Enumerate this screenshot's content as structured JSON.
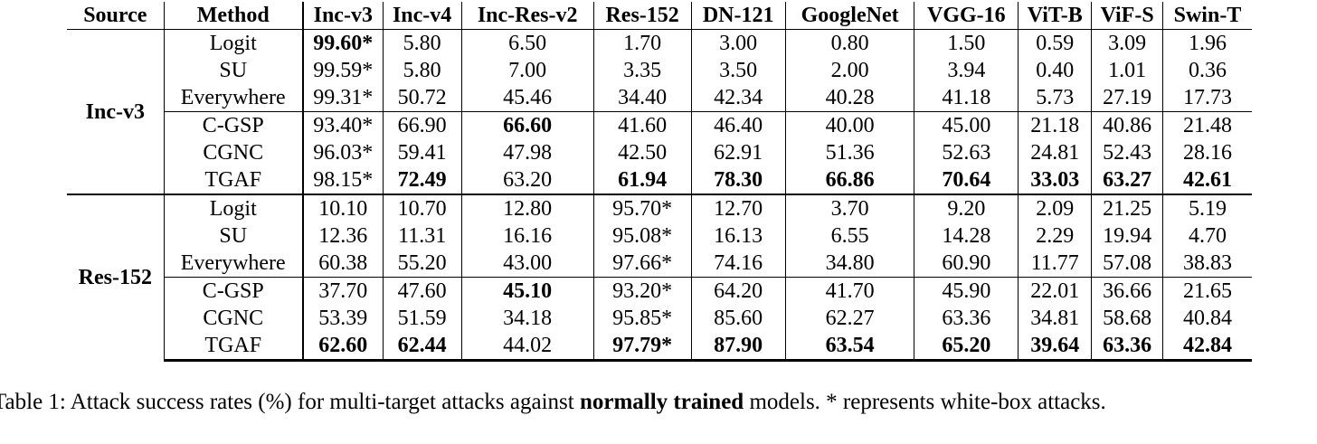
{
  "headers": [
    "Source",
    "Method",
    "Inc-v3",
    "Inc-v4",
    "Inc-Res-v2",
    "Res-152",
    "DN-121",
    "GoogleNet",
    "VGG-16",
    "ViT-B",
    "ViF-S",
    "Swin-T"
  ],
  "groups": [
    {
      "source": "Inc-v3",
      "rows": [
        {
          "method": "Logit",
          "cells": [
            {
              "v": "99.60*",
              "b": true
            },
            {
              "v": "5.80"
            },
            {
              "v": "6.50"
            },
            {
              "v": "1.70"
            },
            {
              "v": "3.00"
            },
            {
              "v": "0.80"
            },
            {
              "v": "1.50"
            },
            {
              "v": "0.59"
            },
            {
              "v": "3.09"
            },
            {
              "v": "1.96"
            }
          ]
        },
        {
          "method": "SU",
          "cells": [
            {
              "v": "99.59*"
            },
            {
              "v": "5.80"
            },
            {
              "v": "7.00"
            },
            {
              "v": "3.35"
            },
            {
              "v": "3.50"
            },
            {
              "v": "2.00"
            },
            {
              "v": "3.94"
            },
            {
              "v": "0.40"
            },
            {
              "v": "1.01"
            },
            {
              "v": "0.36"
            }
          ]
        },
        {
          "method": "Everywhere",
          "cells": [
            {
              "v": "99.31*"
            },
            {
              "v": "50.72"
            },
            {
              "v": "45.46"
            },
            {
              "v": "34.40"
            },
            {
              "v": "42.34"
            },
            {
              "v": "40.28"
            },
            {
              "v": "41.18"
            },
            {
              "v": "5.73"
            },
            {
              "v": "27.19"
            },
            {
              "v": "17.73"
            }
          ]
        },
        {
          "method": "C-GSP",
          "cells": [
            {
              "v": "93.40*"
            },
            {
              "v": "66.90"
            },
            {
              "v": "66.60",
              "b": true
            },
            {
              "v": "41.60"
            },
            {
              "v": "46.40"
            },
            {
              "v": "40.00"
            },
            {
              "v": "45.00"
            },
            {
              "v": "21.18"
            },
            {
              "v": "40.86"
            },
            {
              "v": "21.48"
            }
          ]
        },
        {
          "method": "CGNC",
          "cells": [
            {
              "v": "96.03*"
            },
            {
              "v": "59.41"
            },
            {
              "v": "47.98"
            },
            {
              "v": "42.50"
            },
            {
              "v": "62.91"
            },
            {
              "v": "51.36"
            },
            {
              "v": "52.63"
            },
            {
              "v": "24.81"
            },
            {
              "v": "52.43"
            },
            {
              "v": "28.16"
            }
          ]
        },
        {
          "method": "TGAF",
          "cells": [
            {
              "v": "98.15*"
            },
            {
              "v": "72.49",
              "b": true
            },
            {
              "v": "63.20"
            },
            {
              "v": "61.94",
              "b": true
            },
            {
              "v": "78.30",
              "b": true
            },
            {
              "v": "66.86",
              "b": true
            },
            {
              "v": "70.64",
              "b": true
            },
            {
              "v": "33.03",
              "b": true
            },
            {
              "v": "63.27",
              "b": true
            },
            {
              "v": "42.61",
              "b": true
            }
          ]
        }
      ]
    },
    {
      "source": "Res-152",
      "rows": [
        {
          "method": "Logit",
          "cells": [
            {
              "v": "10.10"
            },
            {
              "v": "10.70"
            },
            {
              "v": "12.80"
            },
            {
              "v": "95.70*"
            },
            {
              "v": "12.70"
            },
            {
              "v": "3.70"
            },
            {
              "v": "9.20"
            },
            {
              "v": "2.09"
            },
            {
              "v": "21.25"
            },
            {
              "v": "5.19"
            }
          ]
        },
        {
          "method": "SU",
          "cells": [
            {
              "v": "12.36"
            },
            {
              "v": "11.31"
            },
            {
              "v": "16.16"
            },
            {
              "v": "95.08*"
            },
            {
              "v": "16.13"
            },
            {
              "v": "6.55"
            },
            {
              "v": "14.28"
            },
            {
              "v": "2.29"
            },
            {
              "v": "19.94"
            },
            {
              "v": "4.70"
            }
          ]
        },
        {
          "method": "Everywhere",
          "cells": [
            {
              "v": "60.38"
            },
            {
              "v": "55.20"
            },
            {
              "v": "43.00"
            },
            {
              "v": "97.66*"
            },
            {
              "v": "74.16"
            },
            {
              "v": "34.80"
            },
            {
              "v": "60.90"
            },
            {
              "v": "11.77"
            },
            {
              "v": "57.08"
            },
            {
              "v": "38.83"
            }
          ]
        },
        {
          "method": "C-GSP",
          "cells": [
            {
              "v": "37.70"
            },
            {
              "v": "47.60"
            },
            {
              "v": "45.10",
              "b": true
            },
            {
              "v": "93.20*"
            },
            {
              "v": "64.20"
            },
            {
              "v": "41.70"
            },
            {
              "v": "45.90"
            },
            {
              "v": "22.01"
            },
            {
              "v": "36.66"
            },
            {
              "v": "21.65"
            }
          ]
        },
        {
          "method": "CGNC",
          "cells": [
            {
              "v": "53.39"
            },
            {
              "v": "51.59"
            },
            {
              "v": "34.18"
            },
            {
              "v": "95.85*"
            },
            {
              "v": "85.60"
            },
            {
              "v": "62.27"
            },
            {
              "v": "63.36"
            },
            {
              "v": "34.81"
            },
            {
              "v": "58.68"
            },
            {
              "v": "40.84"
            }
          ]
        },
        {
          "method": "TGAF",
          "cells": [
            {
              "v": "62.60",
              "b": true
            },
            {
              "v": "62.44",
              "b": true
            },
            {
              "v": "44.02"
            },
            {
              "v": "97.79*",
              "b": true
            },
            {
              "v": "87.90",
              "b": true
            },
            {
              "v": "63.54",
              "b": true
            },
            {
              "v": "65.20",
              "b": true
            },
            {
              "v": "39.64",
              "b": true
            },
            {
              "v": "63.36",
              "b": true
            },
            {
              "v": "42.84",
              "b": true
            }
          ]
        }
      ]
    }
  ],
  "caption": {
    "prefix": "Table 1: Attack success rates (%) for multi-target attacks against ",
    "bold": "normally trained",
    "suffix": " models. * represents white-box attacks."
  }
}
